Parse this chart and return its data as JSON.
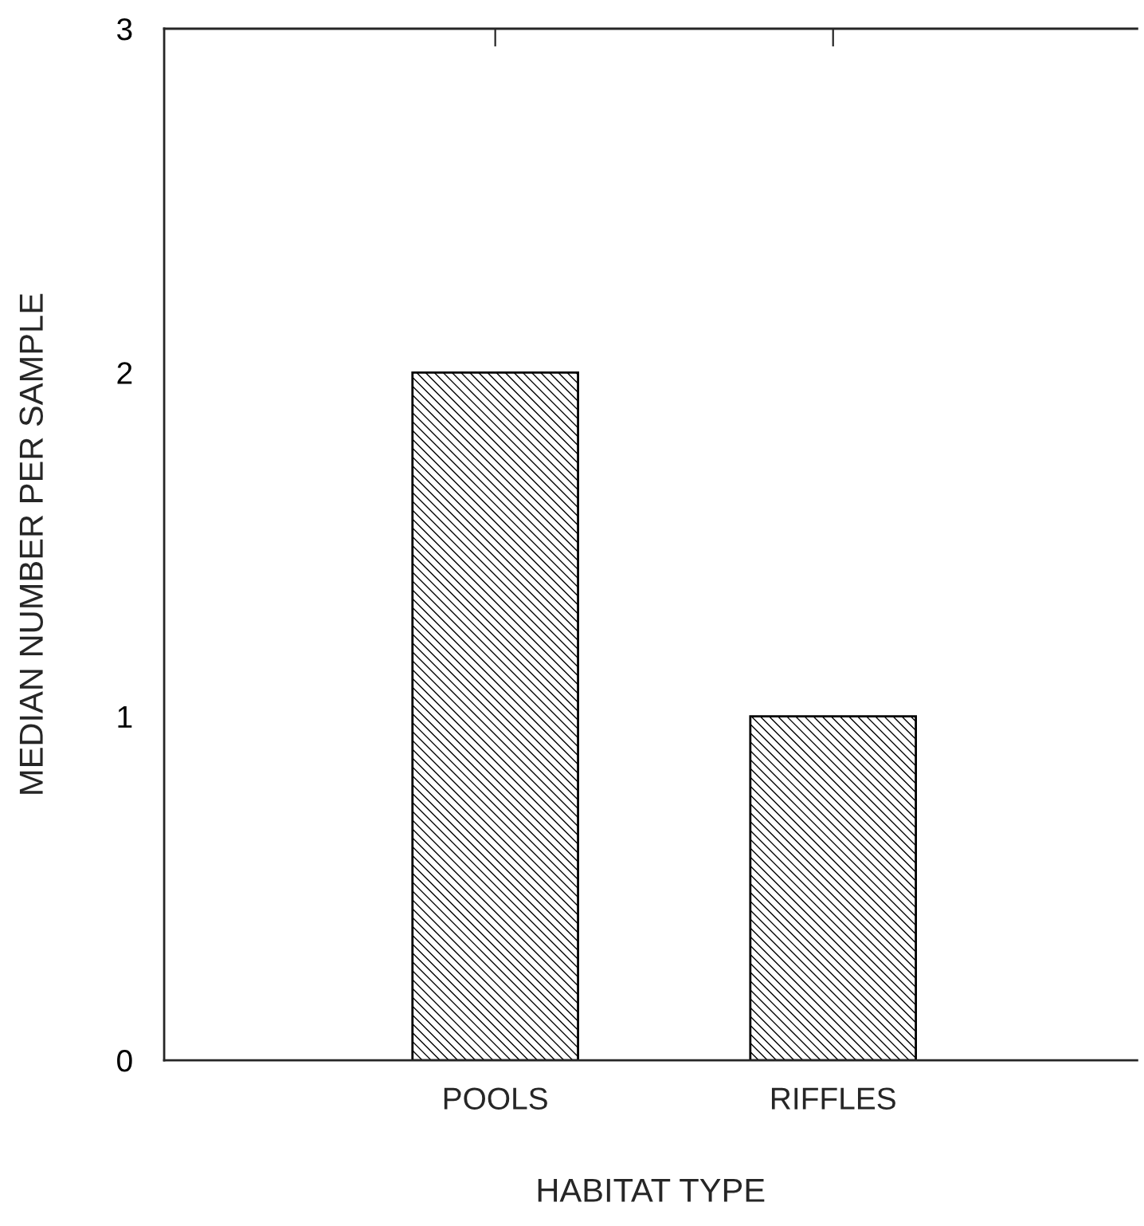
{
  "chart_data": {
    "type": "bar",
    "xlabel": "HABITAT TYPE",
    "ylabel": "MEDIAN NUMBER PER SAMPLE",
    "categories": [
      "POOLS",
      "RIFFLES"
    ],
    "series": [
      {
        "color": "#000000",
        "values": [
          2,
          1
        ]
      }
    ],
    "ylim": [
      0,
      3
    ],
    "yticks": [
      0,
      1,
      2,
      3
    ],
    "grid": false,
    "legend": false
  }
}
